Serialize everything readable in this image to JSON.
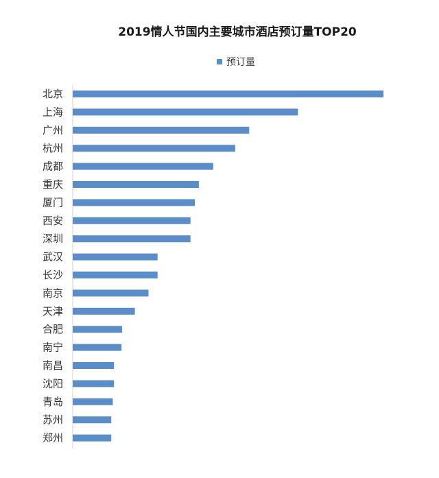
{
  "chart_data": {
    "type": "bar",
    "orientation": "horizontal",
    "title": "2019情人节国内主要城市酒店预订量TOP20",
    "legend": {
      "position": "top",
      "entries": [
        "预订量"
      ]
    },
    "categories": [
      "北京",
      "上海",
      "广州",
      "杭州",
      "成都",
      "重庆",
      "厦门",
      "西安",
      "深圳",
      "武汉",
      "长沙",
      "南京",
      "天津",
      "合肥",
      "南宁",
      "南昌",
      "沈阳",
      "青岛",
      "苏州",
      "郑州"
    ],
    "series": [
      {
        "name": "预订量",
        "color": "#5b8ec9",
        "values": [
          100,
          72.5,
          56.8,
          52.3,
          45.2,
          40.6,
          39.3,
          37.9,
          37.9,
          27.3,
          27.3,
          24.4,
          20.0,
          15.9,
          15.7,
          13.3,
          13.3,
          12.9,
          12.4,
          12.4
        ]
      }
    ],
    "xlim": [
      0,
      100
    ],
    "xlabel": "",
    "ylabel": "",
    "grid": false,
    "x_axis_visible": false
  }
}
